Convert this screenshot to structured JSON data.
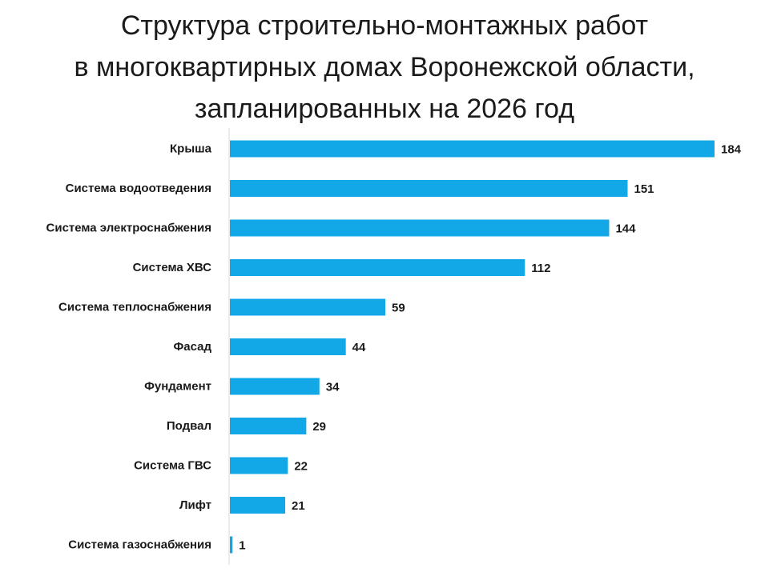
{
  "chart_data": {
    "type": "bar",
    "orientation": "horizontal",
    "title_lines": [
      "Структура строительно-монтажных работ",
      "в многоквартирных домах Воронежской области,",
      "запланированных на 2026 год"
    ],
    "categories": [
      "Крыша",
      "Система водоотведения",
      "Система электроснабжения",
      "Система ХВС",
      "Система теплоснабжения",
      "Фасад",
      "Фундамент",
      "Подвал",
      "Система ГВС",
      "Лифт",
      "Система газоснабжения"
    ],
    "values": [
      184,
      151,
      144,
      112,
      59,
      44,
      34,
      29,
      22,
      21,
      1
    ],
    "xlim": [
      0,
      184
    ],
    "data_labels": true,
    "grid": false,
    "legend": "none",
    "bar_color": "#12A8E8"
  }
}
